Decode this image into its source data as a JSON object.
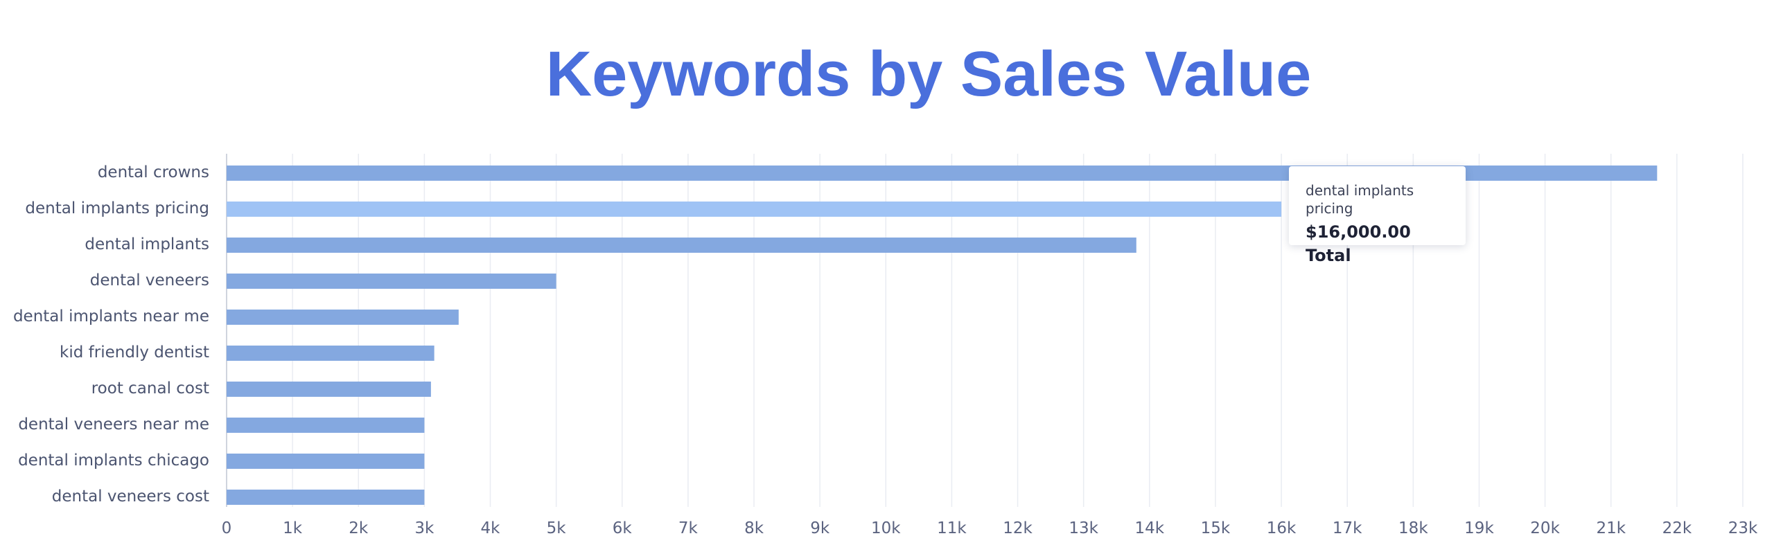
{
  "chart_data": {
    "type": "bar",
    "orientation": "horizontal",
    "title": "Keywords by Sales Value",
    "categories": [
      "dental crowns",
      "dental implants pricing",
      "dental implants",
      "dental veneers",
      "dental implants near me",
      "kid friendly dentist",
      "root canal cost",
      "dental veneers near me",
      "dental implants chicago",
      "dental veneers cost"
    ],
    "values": [
      21700,
      16000,
      13800,
      5000,
      3520,
      3150,
      3100,
      3000,
      3000,
      3000
    ],
    "xlim": [
      0,
      23000
    ],
    "x_ticks": [
      "0",
      "1k",
      "2k",
      "3k",
      "4k",
      "5k",
      "6k",
      "7k",
      "8k",
      "9k",
      "10k",
      "11k",
      "12k",
      "13k",
      "14k",
      "15k",
      "16k",
      "17k",
      "18k",
      "19k",
      "20k",
      "21k",
      "22k",
      "23k"
    ],
    "grid": "vertical",
    "legend": "none",
    "colors": {
      "bar": "#84a8e0",
      "bar_highlight": "#9fc3f5",
      "title": "#4a6fdc",
      "grid": "#e9ecf2",
      "axis": "#cfd4de"
    },
    "highlighted_index": 1,
    "tooltip": {
      "category": "dental implants pricing",
      "value_text": "$16,000.00 Total"
    }
  }
}
